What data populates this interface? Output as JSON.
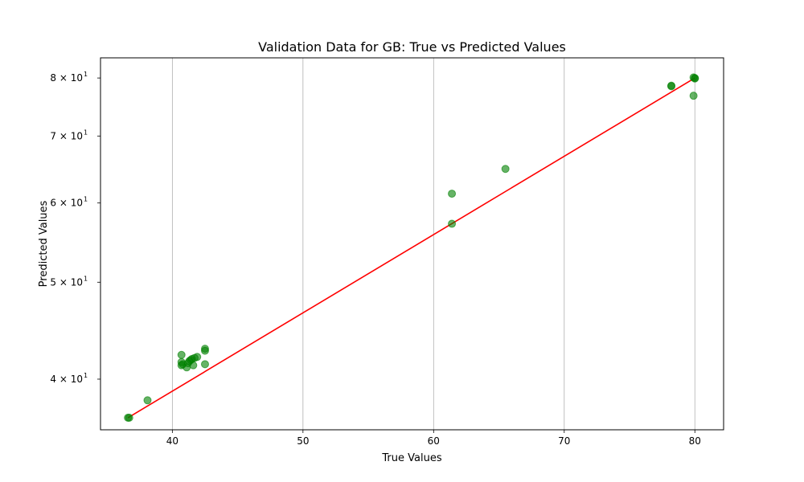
{
  "chart_data": {
    "type": "scatter",
    "title": "Validation Data for GB: True vs Predicted Values",
    "xlabel": "True Values",
    "ylabel": "Predicted Values",
    "xlim": [
      34.5,
      82.2
    ],
    "ylim": [
      35.6,
      83.8
    ],
    "yscale": "log",
    "grid": "x-axis vertical lines only",
    "x_ticks": [
      {
        "value": 40,
        "label": "40"
      },
      {
        "value": 50,
        "label": "50"
      },
      {
        "value": 60,
        "label": "60"
      },
      {
        "value": 70,
        "label": "70"
      },
      {
        "value": 80,
        "label": "80"
      }
    ],
    "y_ticks": [
      {
        "value": 40,
        "label": "4 × 10",
        "exp": "1"
      },
      {
        "value": 50,
        "label": "5 × 10",
        "exp": "1"
      },
      {
        "value": 60,
        "label": "6 × 10",
        "exp": "1"
      },
      {
        "value": 70,
        "label": "7 × 10",
        "exp": "1"
      },
      {
        "value": 80,
        "label": "8 × 10",
        "exp": "1"
      }
    ],
    "colors": {
      "points": "#008000",
      "ideal_line": "#ff0000",
      "grid": "#b0b0b0",
      "axes": "#000000"
    },
    "ideal_line": {
      "x": [
        36.6,
        80.0
      ],
      "y": [
        36.6,
        80.0
      ]
    },
    "points": [
      {
        "x": 36.6,
        "y": 36.6
      },
      {
        "x": 36.7,
        "y": 36.6
      },
      {
        "x": 38.1,
        "y": 38.1
      },
      {
        "x": 40.7,
        "y": 42.3
      },
      {
        "x": 40.7,
        "y": 41.6
      },
      {
        "x": 40.7,
        "y": 41.3
      },
      {
        "x": 40.8,
        "y": 41.4
      },
      {
        "x": 41.1,
        "y": 41.1
      },
      {
        "x": 41.2,
        "y": 41.5
      },
      {
        "x": 41.3,
        "y": 41.7
      },
      {
        "x": 41.4,
        "y": 41.8
      },
      {
        "x": 41.5,
        "y": 41.9
      },
      {
        "x": 41.6,
        "y": 41.3
      },
      {
        "x": 41.7,
        "y": 42.0
      },
      {
        "x": 41.9,
        "y": 42.1
      },
      {
        "x": 42.5,
        "y": 42.7
      },
      {
        "x": 42.5,
        "y": 42.9
      },
      {
        "x": 42.5,
        "y": 41.4
      },
      {
        "x": 61.4,
        "y": 61.3
      },
      {
        "x": 61.4,
        "y": 57.2
      },
      {
        "x": 65.5,
        "y": 64.9
      },
      {
        "x": 78.2,
        "y": 78.6
      },
      {
        "x": 78.2,
        "y": 78.5
      },
      {
        "x": 79.9,
        "y": 76.8
      },
      {
        "x": 80.0,
        "y": 79.9
      },
      {
        "x": 80.0,
        "y": 80.0
      },
      {
        "x": 79.9,
        "y": 80.1
      }
    ]
  }
}
